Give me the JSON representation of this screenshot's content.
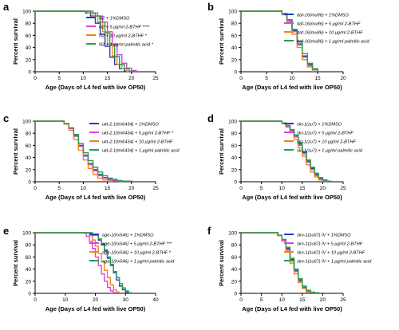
{
  "chart_data": [
    {
      "panel": "a",
      "type": "line",
      "ylabel": "Percent survival",
      "xlabel": "Age (Days of L4 fed with live OP50)",
      "xlim": [
        0,
        25
      ],
      "ylim": [
        0,
        100
      ],
      "xticks": [
        0,
        5,
        10,
        15,
        20,
        25
      ],
      "yticks": [
        0,
        20,
        40,
        60,
        80,
        100
      ],
      "legend_position": "top-right",
      "series": [
        {
          "name": "N2 + 1%DMSO",
          "color": "#1f3fb5",
          "x": [
            0,
            9.5,
            10.5,
            11.5,
            12.5,
            13.5,
            14.5,
            15.5,
            16.5,
            17.5,
            18.5,
            19.5
          ],
          "y": [
            100,
            100,
            97,
            92,
            80,
            62,
            42,
            24,
            12,
            5,
            1,
            0
          ]
        },
        {
          "name": "N2 + 5 μg/ml 2-BTHF ****",
          "color": "#e040e0",
          "x": [
            0,
            11,
            12,
            13,
            14,
            15,
            16,
            17,
            18,
            19,
            20,
            21
          ],
          "y": [
            100,
            100,
            97,
            92,
            82,
            66,
            46,
            28,
            14,
            6,
            2,
            0
          ]
        },
        {
          "name": "N2 + 10 μg/ml 2-BTHF *",
          "color": "#f0841e",
          "x": [
            0,
            10,
            11,
            12,
            13,
            14,
            15,
            16,
            17,
            18,
            19,
            20
          ],
          "y": [
            100,
            100,
            97,
            92,
            82,
            66,
            46,
            26,
            12,
            5,
            1,
            0
          ]
        },
        {
          "name": "N2 + 1 μg/ml palmitic acid *",
          "color": "#2a9d4a",
          "x": [
            0,
            10.5,
            11.5,
            12.5,
            13.5,
            14.5,
            15.5,
            16.5,
            17.5,
            18.5,
            19.5,
            20.5
          ],
          "y": [
            100,
            100,
            97,
            92,
            82,
            64,
            44,
            25,
            12,
            5,
            1,
            0
          ]
        }
      ]
    },
    {
      "panel": "b",
      "type": "line",
      "ylabel": "Percent survival",
      "xlabel": "Age (Days of L4 fed with live OP50)",
      "xlim": [
        0,
        20
      ],
      "ylim": [
        0,
        100
      ],
      "xticks": [
        0,
        5,
        10,
        15,
        20
      ],
      "yticks": [
        0,
        20,
        40,
        60,
        80,
        100
      ],
      "legend_position": "top-right",
      "series": [
        {
          "name": "daf-16(mu86) + 1%DMSO",
          "color": "#1f3fb5",
          "x": [
            0,
            7,
            8,
            9,
            10,
            11,
            12,
            13,
            14,
            15
          ],
          "y": [
            100,
            100,
            96,
            86,
            68,
            46,
            26,
            12,
            4,
            0
          ]
        },
        {
          "name": "daf-16(mu86) + 5 μg/ml 2-BTHF",
          "color": "#e040e0",
          "x": [
            0,
            7,
            8,
            9,
            10,
            11,
            12,
            13,
            14,
            15
          ],
          "y": [
            100,
            100,
            95,
            84,
            66,
            44,
            24,
            10,
            3,
            0
          ]
        },
        {
          "name": "daf-16(mu86) + 10 μg/ml 2-BTHF",
          "color": "#f0841e",
          "x": [
            0,
            7,
            8,
            9,
            10,
            11,
            12,
            13,
            14
          ],
          "y": [
            100,
            100,
            94,
            82,
            62,
            40,
            20,
            8,
            0
          ]
        },
        {
          "name": "daf-16(mu86) + 1 μg/ml palmitic acid",
          "color": "#2a9d4a",
          "x": [
            0,
            7,
            8,
            9,
            10,
            11,
            12,
            13,
            14,
            15
          ],
          "y": [
            100,
            100,
            96,
            86,
            70,
            50,
            30,
            14,
            5,
            0
          ]
        }
      ]
    },
    {
      "panel": "c",
      "type": "line",
      "ylabel": "Percent survival",
      "xlabel": "Age (Days of L4 fed with live OP50)",
      "xlim": [
        0,
        25
      ],
      "ylim": [
        0,
        100
      ],
      "xticks": [
        0,
        5,
        10,
        15,
        20,
        25
      ],
      "yticks": [
        0,
        20,
        40,
        60,
        80,
        100
      ],
      "legend_position": "top-right",
      "series": [
        {
          "name": "ukt-2.1(tm6434) + 1%DMSO",
          "color": "#1f3fb5",
          "x": [
            0,
            5,
            6,
            7,
            8,
            9,
            10,
            11,
            12,
            13,
            14,
            15,
            16,
            17,
            18
          ],
          "y": [
            100,
            100,
            96,
            88,
            76,
            60,
            44,
            30,
            20,
            12,
            7,
            4,
            2,
            1,
            0
          ]
        },
        {
          "name": "ukt-2.1(tm6434) + 5 μg/ml 2-BTHF *",
          "color": "#e040e0",
          "x": [
            0,
            5,
            6,
            7,
            8,
            9,
            10,
            11,
            12,
            13,
            14,
            15,
            16,
            17,
            18
          ],
          "y": [
            100,
            100,
            96,
            88,
            75,
            58,
            42,
            28,
            18,
            10,
            6,
            3,
            2,
            1,
            0
          ]
        },
        {
          "name": "ukt-2.1(tm6434) + 10 μg/ml 2-BTHF",
          "color": "#f0841e",
          "x": [
            0,
            5,
            6,
            7,
            8,
            9,
            10,
            11,
            12,
            13,
            14,
            15,
            16
          ],
          "y": [
            100,
            100,
            95,
            85,
            70,
            52,
            36,
            22,
            12,
            6,
            3,
            1,
            0
          ]
        },
        {
          "name": "ukt-2.1(tm6434) + 1 μg/ml palmitic acid",
          "color": "#2a9d4a",
          "x": [
            0,
            5,
            6,
            7,
            8,
            9,
            10,
            11,
            12,
            13,
            14,
            15,
            16,
            17,
            18,
            19,
            20
          ],
          "y": [
            100,
            100,
            96,
            89,
            78,
            63,
            48,
            35,
            24,
            16,
            10,
            6,
            4,
            2,
            1,
            1,
            0
          ]
        }
      ]
    },
    {
      "panel": "d",
      "type": "line",
      "ylabel": "Percent survival",
      "xlabel": "Age (Days of L4 fed with live OP50)",
      "xlim": [
        0,
        25
      ],
      "ylim": [
        0,
        100
      ],
      "xticks": [
        0,
        5,
        10,
        15,
        20,
        25
      ],
      "yticks": [
        0,
        20,
        40,
        60,
        80,
        100
      ],
      "legend_position": "top-right",
      "series": [
        {
          "name": "skt-1(zu7) + 1%DMSO",
          "color": "#1f3fb5",
          "x": [
            0,
            9,
            10,
            11,
            12,
            13,
            14,
            15,
            16,
            17,
            18,
            19,
            20,
            21
          ],
          "y": [
            100,
            100,
            97,
            92,
            85,
            75,
            62,
            48,
            34,
            22,
            12,
            5,
            2,
            0
          ]
        },
        {
          "name": "skt-1(zu7) + 5 μg/ml 2-BTHF",
          "color": "#e040e0",
          "x": [
            0,
            9,
            10,
            11,
            12,
            13,
            14,
            15,
            16,
            17,
            18,
            19,
            20,
            21
          ],
          "y": [
            100,
            100,
            96,
            91,
            84,
            74,
            60,
            46,
            32,
            20,
            10,
            4,
            1,
            0
          ]
        },
        {
          "name": "skt-1(zu7) + 10 μg/ml 2-BTHF",
          "color": "#f0841e",
          "x": [
            0,
            9,
            10,
            11,
            12,
            13,
            14,
            15,
            16,
            17,
            18,
            19,
            20
          ],
          "y": [
            100,
            100,
            96,
            90,
            82,
            70,
            56,
            42,
            28,
            16,
            8,
            3,
            0
          ]
        },
        {
          "name": "skt-1(zu7) + 1 μg/ml palmitic acid",
          "color": "#2a9d4a",
          "x": [
            0,
            9,
            10,
            11,
            12,
            13,
            14,
            15,
            16,
            17,
            18,
            19,
            20,
            21,
            22
          ],
          "y": [
            100,
            100,
            97,
            93,
            86,
            77,
            64,
            50,
            36,
            24,
            14,
            7,
            3,
            1,
            0
          ]
        }
      ]
    },
    {
      "panel": "e",
      "type": "line",
      "ylabel": "Percent survival",
      "xlabel": "Age (Days of L4 fed with live OP50)",
      "xlim": [
        0,
        40
      ],
      "ylim": [
        0,
        100
      ],
      "xticks": [
        0,
        10,
        20,
        30,
        40
      ],
      "yticks": [
        0,
        20,
        40,
        60,
        80,
        100
      ],
      "legend_position": "top-right",
      "series": [
        {
          "name": "age-1(hx546) + 1%DMSO",
          "color": "#1f3fb5",
          "x": [
            0,
            17,
            19,
            21,
            22,
            23,
            24,
            25,
            26,
            27,
            28,
            29,
            30,
            31
          ],
          "y": [
            100,
            100,
            96,
            88,
            80,
            70,
            58,
            46,
            34,
            22,
            12,
            6,
            2,
            0
          ]
        },
        {
          "name": "age-1(hx546) + 5 μg/ml 2-BTHF ***",
          "color": "#e040e0",
          "x": [
            0,
            15,
            17,
            18,
            19,
            20,
            21,
            22,
            23,
            24,
            25,
            26,
            27
          ],
          "y": [
            100,
            100,
            94,
            86,
            74,
            60,
            46,
            32,
            20,
            10,
            4,
            1,
            0
          ]
        },
        {
          "name": "age-1(hx546) + 10 μg/ml 2-BTHF *",
          "color": "#f0841e",
          "x": [
            0,
            16,
            18,
            19,
            20,
            21,
            22,
            23,
            24,
            25,
            26,
            27,
            28
          ],
          "y": [
            100,
            100,
            95,
            88,
            78,
            66,
            52,
            38,
            26,
            14,
            6,
            2,
            0
          ]
        },
        {
          "name": "age-1(hx546) + 1 μg/ml palmitic acid",
          "color": "#2a9d4a",
          "x": [
            0,
            17,
            19,
            21,
            22,
            23,
            24,
            25,
            26,
            27,
            28,
            29,
            30,
            31,
            32
          ],
          "y": [
            100,
            100,
            96,
            90,
            82,
            72,
            60,
            48,
            36,
            26,
            16,
            9,
            4,
            1,
            0
          ]
        }
      ]
    },
    {
      "panel": "f",
      "type": "line",
      "ylabel": "Percent survival",
      "xlabel": "Age (Days of L4 fed with live OP50)",
      "xlim": [
        0,
        25
      ],
      "ylim": [
        0,
        100
      ],
      "xticks": [
        0,
        5,
        10,
        15,
        20,
        25
      ],
      "yticks": [
        0,
        20,
        40,
        60,
        80,
        100
      ],
      "legend_position": "top-right",
      "series": [
        {
          "name": "skn-1(zu67) IV + 1%DMSO",
          "color": "#1f3fb5",
          "x": [
            0,
            8,
            9,
            10,
            11,
            12,
            13,
            14,
            15,
            16,
            17,
            18
          ],
          "y": [
            100,
            100,
            96,
            88,
            74,
            56,
            38,
            22,
            10,
            4,
            1,
            0
          ]
        },
        {
          "name": "skn-1(zu67) IV + 5 μg/ml 2-BTHF",
          "color": "#e040e0",
          "x": [
            0,
            8,
            9,
            10,
            11,
            12,
            13,
            14,
            15,
            16,
            17,
            18
          ],
          "y": [
            100,
            100,
            95,
            87,
            72,
            54,
            36,
            20,
            9,
            3,
            1,
            0
          ]
        },
        {
          "name": "skn-1(zu67) IV + 10 μg/ml 2-BTHF",
          "color": "#f0841e",
          "x": [
            0,
            8,
            9,
            10,
            11,
            12,
            13,
            14,
            15,
            16,
            17
          ],
          "y": [
            100,
            100,
            95,
            86,
            70,
            50,
            32,
            18,
            8,
            2,
            0
          ]
        },
        {
          "name": "skn-1(zu67) IV + 1 μg/ml palmitic acid",
          "color": "#2a9d4a",
          "x": [
            0,
            8,
            9,
            10,
            11,
            12,
            13,
            14,
            15,
            16,
            17,
            18,
            19
          ],
          "y": [
            100,
            100,
            96,
            89,
            76,
            58,
            40,
            24,
            12,
            5,
            2,
            1,
            0
          ]
        }
      ]
    }
  ]
}
